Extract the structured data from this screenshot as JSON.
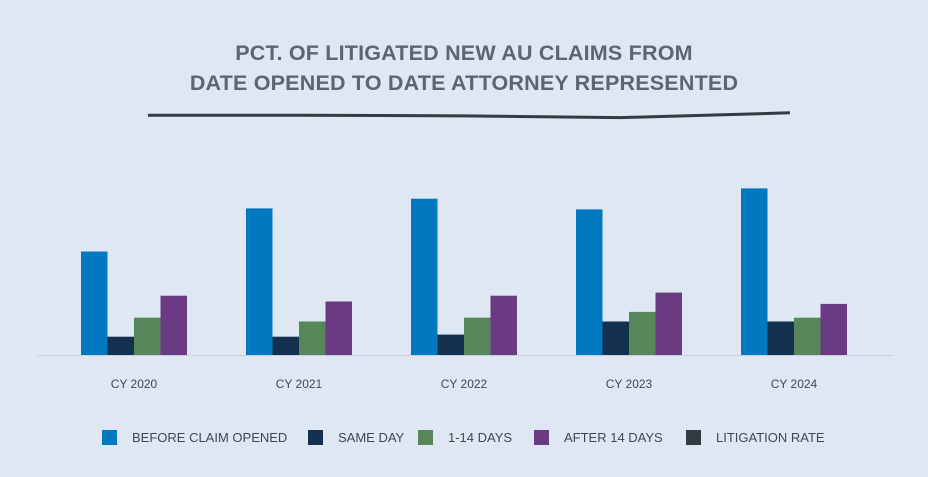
{
  "title": {
    "line1": "PCT. OF LITIGATED NEW AU CLAIMS FROM",
    "line2": "DATE OPENED TO DATE ATTORNEY REPRESENTED"
  },
  "chart_data": {
    "type": "bar",
    "categories": [
      "CY 2020",
      "CY 2021",
      "CY 2022",
      "CY 2023",
      "CY 2024"
    ],
    "series": [
      {
        "name": "BEFORE CLAIM OPENED",
        "type": "bar",
        "color": "#0079c1",
        "values": [
          30.0,
          42.5,
          45.3,
          42.2,
          48.3
        ]
      },
      {
        "name": "SAME DAY",
        "type": "bar",
        "color": "#14304f",
        "values": [
          5.3,
          5.3,
          5.9,
          9.7,
          9.7
        ]
      },
      {
        "name": "1-14 DAYS",
        "type": "bar",
        "color": "#56865a",
        "values": [
          10.8,
          9.7,
          10.8,
          12.5,
          10.8
        ]
      },
      {
        "name": "AFTER 14 DAYS",
        "type": "bar",
        "color": "#6a3a82",
        "values": [
          17.2,
          15.5,
          17.2,
          18.1,
          14.8
        ]
      },
      {
        "name": "LITIGATION RATE",
        "type": "line",
        "color": "#343a42",
        "values": [
          69.5,
          69.5,
          69.3,
          68.8,
          70.2
        ]
      }
    ],
    "ylim": [
      0,
      100
    ],
    "grid": false,
    "legend_position": "bottom"
  }
}
